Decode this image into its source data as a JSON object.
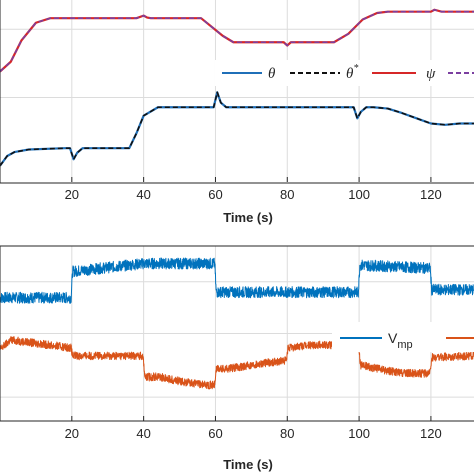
{
  "chart_data": [
    {
      "type": "line",
      "xlabel": "Time (s)",
      "xlim": [
        0,
        132
      ],
      "ylim": [
        -0.4,
        2.4
      ],
      "xticks": [
        20,
        40,
        60,
        80,
        100,
        120
      ],
      "grid": true,
      "legend_position": "inside-right",
      "series": [
        {
          "name": "θ",
          "color": "#1f6fb8",
          "style": "solid",
          "x": [
            0,
            2,
            4,
            8,
            18,
            19.5,
            20.5,
            21.5,
            23,
            36,
            38,
            40,
            44,
            59.5,
            60.5,
            61.5,
            63,
            98.5,
            99.5,
            100.5,
            102,
            104,
            108,
            112,
            116,
            120,
            124,
            128,
            132
          ],
          "y": [
            -0.15,
            0.0,
            0.06,
            0.1,
            0.12,
            0.12,
            -0.05,
            0.05,
            0.12,
            0.12,
            0.35,
            0.62,
            0.75,
            0.75,
            0.98,
            0.82,
            0.75,
            0.75,
            0.58,
            0.68,
            0.75,
            0.75,
            0.73,
            0.66,
            0.58,
            0.5,
            0.48,
            0.5,
            0.5
          ]
        },
        {
          "name": "θ*",
          "color": "#111111",
          "style": "dashed",
          "x": [
            0,
            2,
            4,
            8,
            18,
            19.5,
            20.5,
            21.5,
            23,
            36,
            38,
            40,
            44,
            59.5,
            60.5,
            61.5,
            63,
            98.5,
            99.5,
            100.5,
            102,
            104,
            108,
            112,
            116,
            120,
            124,
            128,
            132
          ],
          "y": [
            -0.15,
            0.0,
            0.06,
            0.1,
            0.12,
            0.12,
            -0.05,
            0.05,
            0.12,
            0.12,
            0.35,
            0.62,
            0.75,
            0.75,
            0.98,
            0.82,
            0.75,
            0.75,
            0.58,
            0.68,
            0.75,
            0.75,
            0.73,
            0.66,
            0.58,
            0.5,
            0.48,
            0.5,
            0.5
          ]
        },
        {
          "name": "ψ",
          "color": "#d62728",
          "style": "solid",
          "x": [
            0,
            3,
            6,
            10,
            14,
            18,
            38,
            40,
            41,
            42,
            46,
            56,
            62,
            65,
            79,
            80,
            81,
            83,
            93,
            97,
            101,
            105,
            108,
            120,
            121,
            123,
            132
          ],
          "y": [
            1.3,
            1.45,
            1.78,
            2.05,
            2.12,
            2.12,
            2.12,
            2.16,
            2.13,
            2.12,
            2.12,
            2.12,
            1.85,
            1.75,
            1.75,
            1.7,
            1.75,
            1.75,
            1.75,
            1.88,
            2.1,
            2.2,
            2.22,
            2.22,
            2.25,
            2.22,
            2.22
          ]
        },
        {
          "name": "ψ*",
          "color": "#7b3fa0",
          "style": "dashed",
          "x": [
            0,
            3,
            6,
            10,
            14,
            18,
            38,
            40,
            41,
            42,
            46,
            56,
            62,
            65,
            79,
            80,
            81,
            83,
            93,
            97,
            101,
            105,
            108,
            120,
            121,
            123,
            132
          ],
          "y": [
            1.3,
            1.45,
            1.78,
            2.05,
            2.12,
            2.12,
            2.12,
            2.16,
            2.13,
            2.12,
            2.12,
            2.12,
            1.85,
            1.75,
            1.75,
            1.7,
            1.75,
            1.75,
            1.75,
            1.88,
            2.1,
            2.2,
            2.22,
            2.22,
            2.25,
            2.22,
            2.22
          ]
        }
      ]
    },
    {
      "type": "line",
      "xlabel": "Time (s)",
      "xlim": [
        0,
        132
      ],
      "ylim": [
        -0.2,
        2.0
      ],
      "xticks": [
        20,
        40,
        60,
        80,
        100,
        120
      ],
      "grid": true,
      "legend_position": "inside-right",
      "series": [
        {
          "name": "V_mp",
          "color": "#0072bd",
          "noise": 0.07,
          "x": [
            0,
            19.8,
            20.2,
            40,
            59.8,
            60.2,
            99.8,
            100.2,
            119.8,
            120.2,
            132
          ],
          "y": [
            1.35,
            1.35,
            1.68,
            1.78,
            1.78,
            1.42,
            1.42,
            1.76,
            1.72,
            1.45,
            1.45
          ]
        },
        {
          "name": "",
          "color": "#d95319",
          "noise": 0.05,
          "x": [
            0,
            3,
            6,
            19.8,
            20.2,
            39.8,
            40.4,
            44,
            50,
            56,
            59.8,
            60.2,
            64,
            72,
            79.8,
            80.2,
            88,
            99.8,
            100.4,
            106,
            112,
            119.8,
            120.2,
            132
          ],
          "y": [
            0.7,
            0.82,
            0.8,
            0.72,
            0.62,
            0.62,
            0.35,
            0.36,
            0.3,
            0.26,
            0.25,
            0.45,
            0.46,
            0.52,
            0.56,
            0.72,
            0.76,
            0.75,
            0.5,
            0.45,
            0.4,
            0.4,
            0.6,
            0.62
          ]
        }
      ]
    }
  ],
  "legend_top": {
    "theta": "θ",
    "theta_ref": "θ",
    "theta_ref_sup": "*",
    "psi": "ψ"
  },
  "legend_bottom": {
    "vmp_main": "V",
    "vmp_sub": "mp"
  },
  "ticks_top": [
    "20",
    "40",
    "60",
    "80",
    "100",
    "120"
  ],
  "ticks_bottom": [
    "20",
    "40",
    "60",
    "80",
    "100",
    "120"
  ],
  "xlabel_top": "Time (s)",
  "xlabel_bottom": "Time (s)"
}
